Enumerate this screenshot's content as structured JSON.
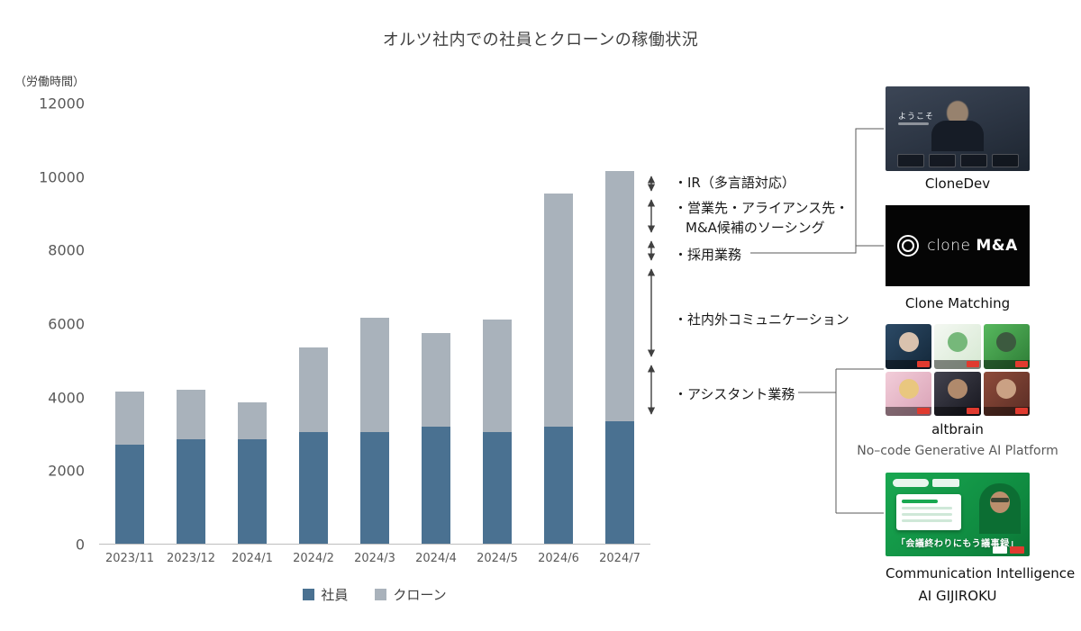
{
  "chart_data": {
    "type": "bar",
    "stacked": true,
    "title": "オルツ社内での社員とクローンの稼働状況",
    "ylabel": "（労働時間）",
    "xlabel": "",
    "ylim": [
      0,
      12000
    ],
    "yticks": [
      0,
      2000,
      4000,
      6000,
      8000,
      10000,
      12000
    ],
    "grid": false,
    "legend_position": "bottom",
    "categories": [
      "2023/11",
      "2023/12",
      "2024/1",
      "2024/2",
      "2024/3",
      "2024/4",
      "2024/5",
      "2024/6",
      "2024/7"
    ],
    "series": [
      {
        "name": "社員",
        "color": "#4a7191",
        "values": [
          2700,
          2850,
          2850,
          3050,
          3050,
          3200,
          3050,
          3200,
          3350
        ]
      },
      {
        "name": "クローン",
        "color": "#a9b2bb",
        "values": [
          1450,
          1350,
          1000,
          2300,
          3100,
          2550,
          3050,
          6350,
          6800
        ]
      }
    ]
  },
  "annotations": {
    "ir": "・IR（多言語対応）",
    "sales_line1": "・営業先・アライアンス先・",
    "sales_line2": "M&A候補のソーシング",
    "recruit": "・採用業務",
    "communication": "・社内外コミュニケーション",
    "assistant": "・アシスタント業務"
  },
  "products": {
    "clonedev": {
      "caption": "CloneDev",
      "thumb_text": "ようこそ"
    },
    "clone_ma": {
      "caption": "Clone Matching",
      "logo_left": "clone",
      "logo_right": "M&A"
    },
    "altbrain": {
      "caption": "altbrain",
      "subcaption": "No–code Generative AI Platform"
    },
    "gijiroku": {
      "caption_line1": "Communication Intelligence",
      "caption_line2": "AI GIJIROKU",
      "banner_text": "「会議終わりにもう議事録」"
    }
  },
  "colors": {
    "employee": "#4a7191",
    "clone": "#a9b2bb",
    "axis_text": "#595959",
    "connector": "#595959",
    "arrow": "#404040"
  }
}
